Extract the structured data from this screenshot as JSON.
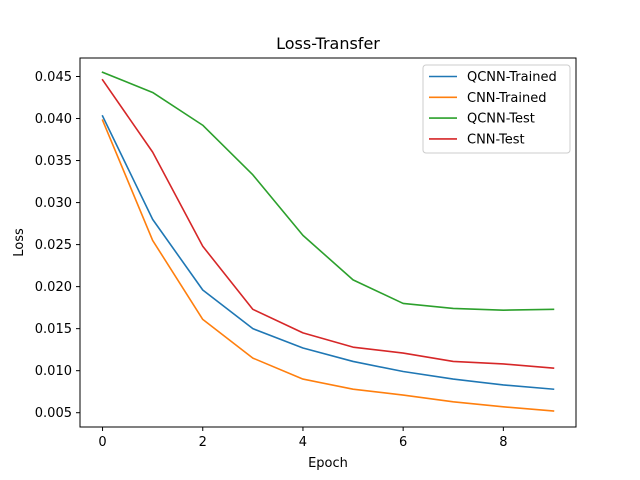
{
  "chart_data": {
    "type": "line",
    "title": "Loss-Transfer",
    "xlabel": "Epoch",
    "ylabel": "Loss",
    "x": [
      0,
      1,
      2,
      3,
      4,
      5,
      6,
      7,
      8,
      9
    ],
    "xlim": [
      -0.45,
      9.45
    ],
    "ylim": [
      0.0033,
      0.0472
    ],
    "xticks": [
      0,
      2,
      4,
      6,
      8
    ],
    "xtick_labels": [
      "0",
      "2",
      "4",
      "6",
      "8"
    ],
    "yticks": [
      0.005,
      0.01,
      0.015,
      0.02,
      0.025,
      0.03,
      0.035,
      0.04,
      0.045
    ],
    "ytick_labels": [
      "0.005",
      "0.010",
      "0.015",
      "0.020",
      "0.025",
      "0.030",
      "0.035",
      "0.040",
      "0.045"
    ],
    "grid": false,
    "legend_position": "top-right",
    "series": [
      {
        "name": "QCNN-Trained",
        "color": "#1f77b4",
        "values": [
          0.0403,
          0.028,
          0.0196,
          0.015,
          0.0127,
          0.0111,
          0.0099,
          0.009,
          0.0083,
          0.0078
        ]
      },
      {
        "name": "CNN-Trained",
        "color": "#ff7f0e",
        "values": [
          0.0398,
          0.0255,
          0.0161,
          0.0115,
          0.009,
          0.0078,
          0.0071,
          0.0063,
          0.0057,
          0.0052
        ]
      },
      {
        "name": "QCNN-Test",
        "color": "#2ca02c",
        "values": [
          0.0455,
          0.0431,
          0.0392,
          0.0333,
          0.0261,
          0.0208,
          0.018,
          0.0174,
          0.0172,
          0.0173
        ]
      },
      {
        "name": "CNN-Test",
        "color": "#d62728",
        "values": [
          0.0446,
          0.036,
          0.0248,
          0.0173,
          0.0145,
          0.0128,
          0.0121,
          0.0111,
          0.0108,
          0.0103
        ]
      }
    ]
  }
}
